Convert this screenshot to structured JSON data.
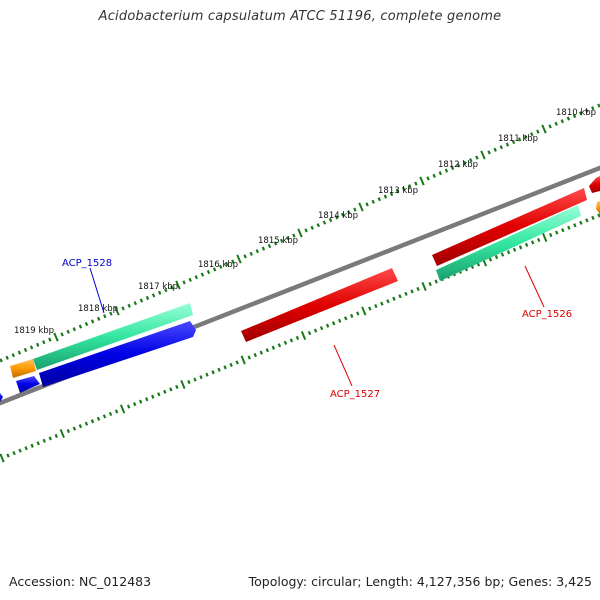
{
  "title": "Acidobacterium capsulatum ATCC 51196, complete genome",
  "footer": {
    "accession": "Accession: NC_012483",
    "summary": "Topology: circular; Length: 4,127,356 bp; Genes: 3,425"
  },
  "colors": {
    "background": "#ffffff",
    "backbone": "#7a7a7a",
    "tick": "#1a7a1a",
    "cds_forward": "#e00000",
    "cds_reverse": "#0000e6",
    "aqua_feature": "#33e6a0",
    "orange_feature": "#ff9900",
    "label_blue": "#0000cc",
    "label_red": "#dd0000"
  },
  "kbp_labels": [
    "1810 kbp",
    "1811 kbp",
    "1812 kbp",
    "1813 kbp",
    "1814 kbp",
    "1815 kbp",
    "1816 kbp",
    "1817 kbp",
    "1818 kbp",
    "1819 kbp"
  ],
  "gene_labels": [
    {
      "text": "ACP_1528",
      "color": "#0000cc"
    },
    {
      "text": "ACP_1527",
      "color": "#dd0000"
    },
    {
      "text": "ACP_1526",
      "color": "#dd0000"
    }
  ]
}
